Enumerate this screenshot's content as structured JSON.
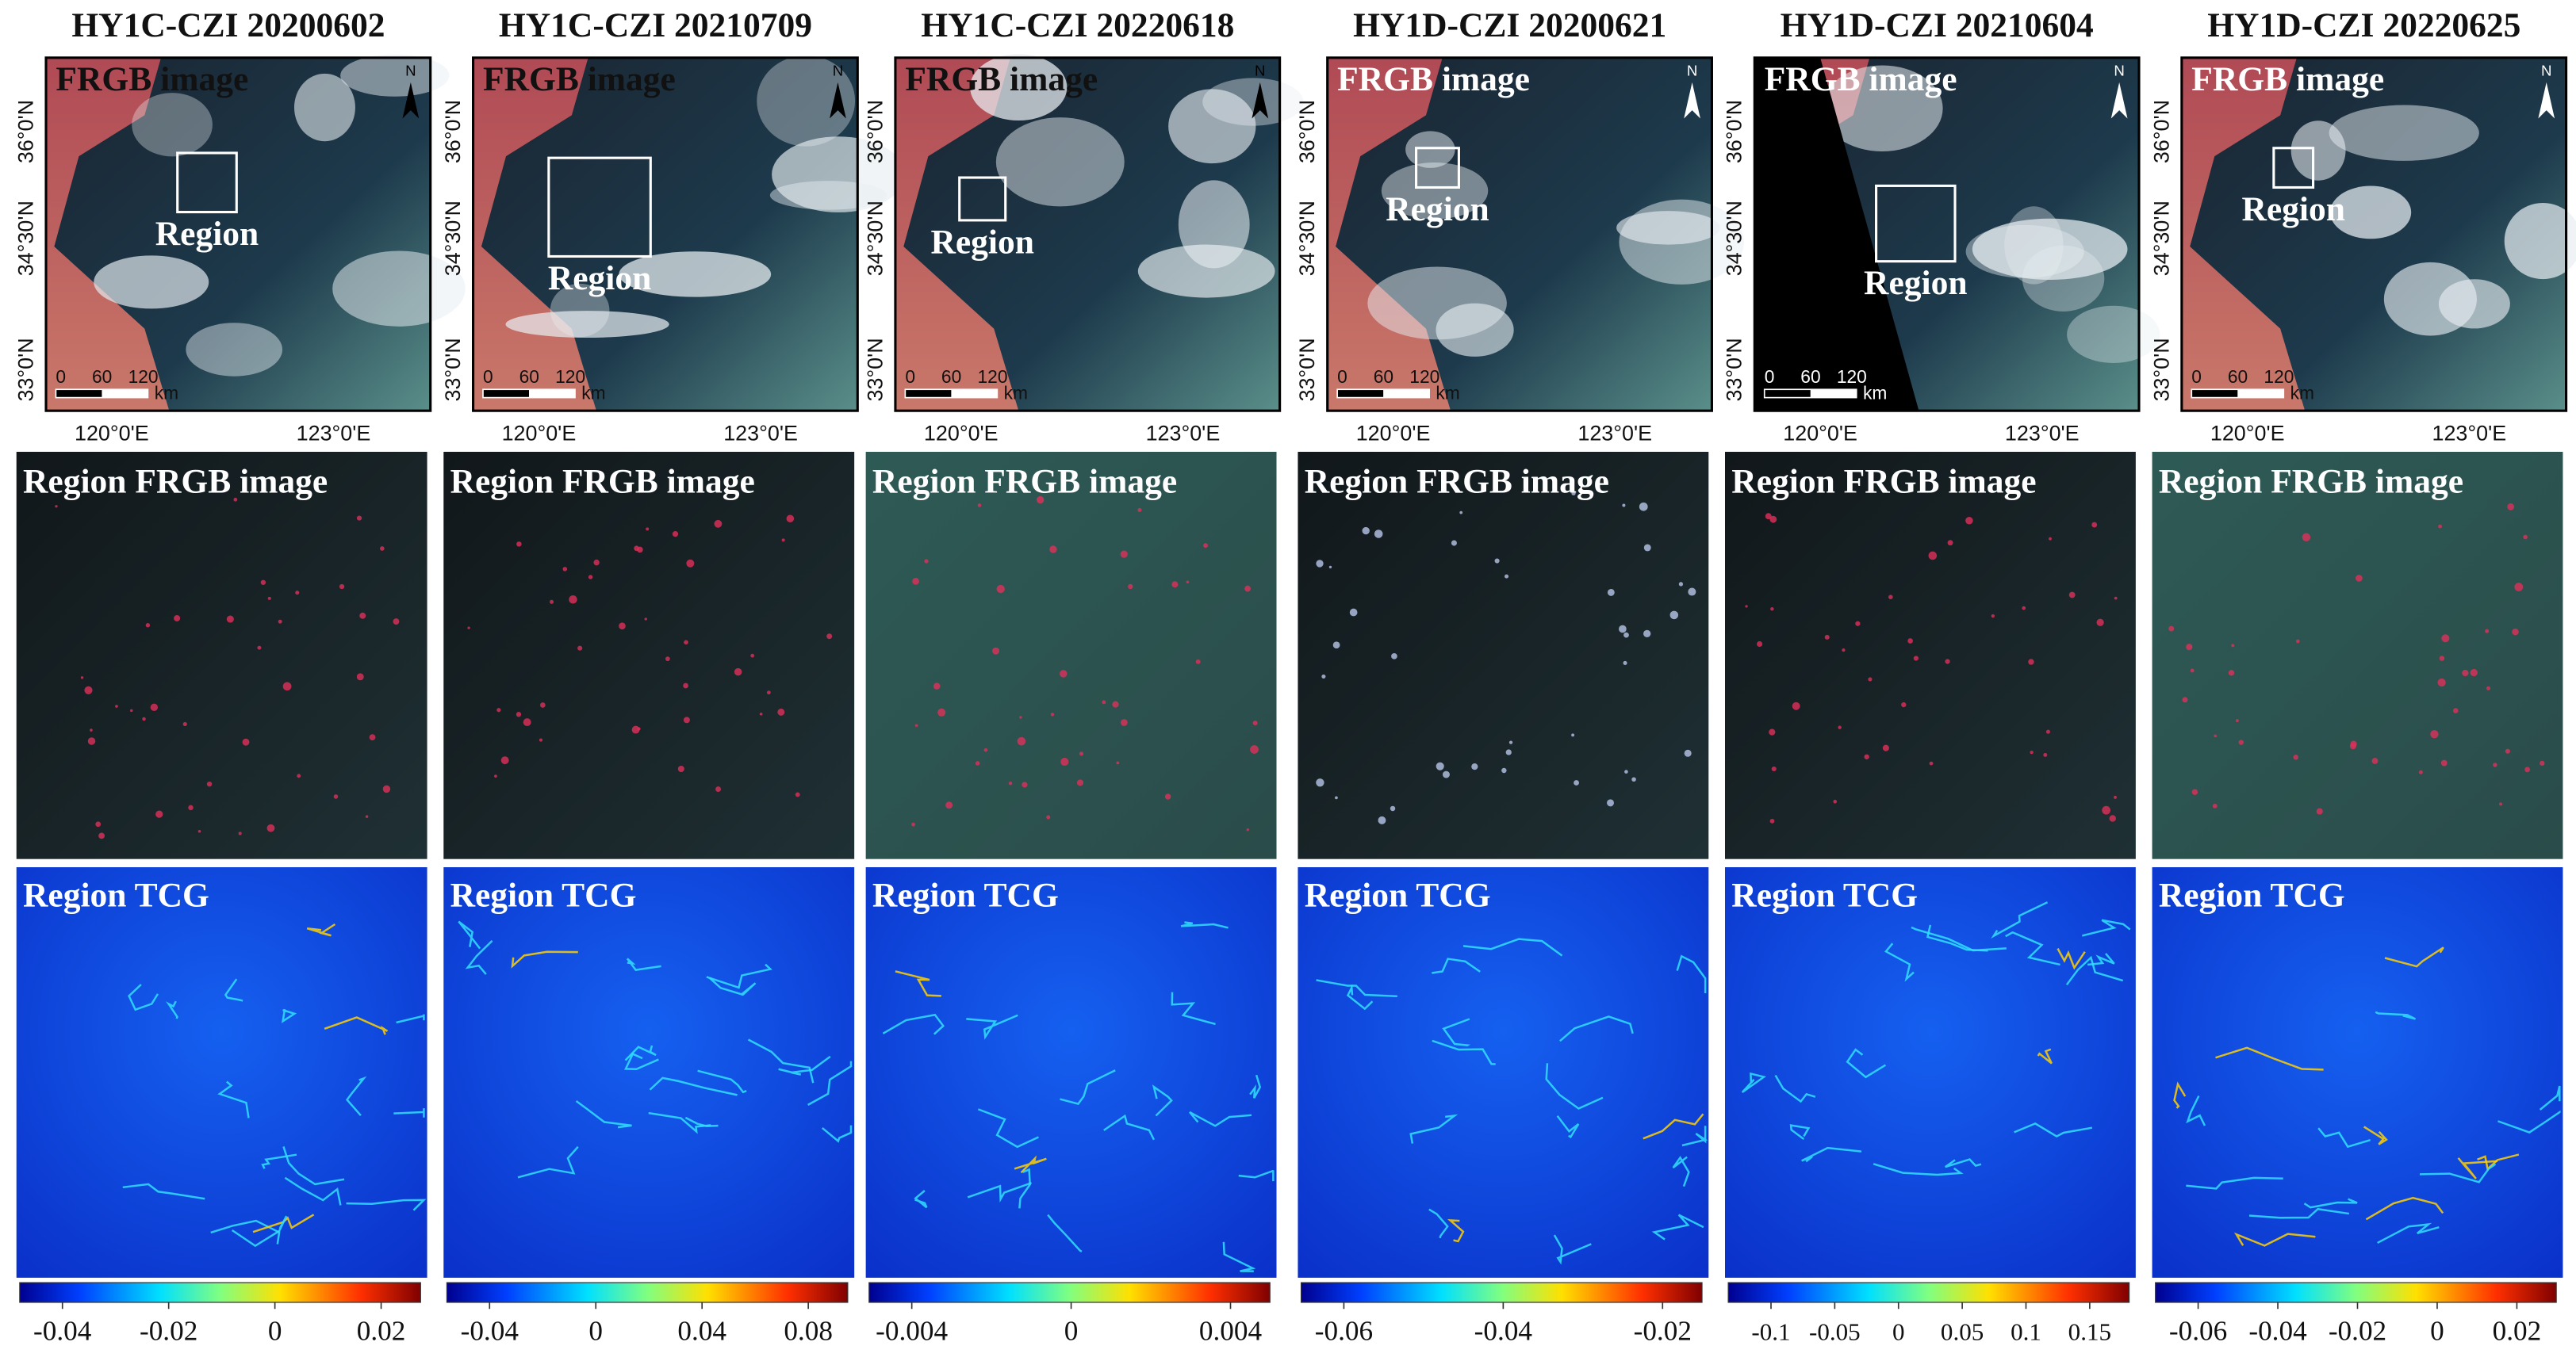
{
  "labels": {
    "frgb": "FRGB image",
    "region": "Region",
    "region_frgb": "Region FRGB image",
    "region_tcg": "Region TCG",
    "north": "N",
    "lat": [
      "36°0'N",
      "34°30'N",
      "33°0'N"
    ],
    "lon": [
      "120°0'E",
      "123°0'E"
    ],
    "scale": [
      "0",
      "60",
      "120"
    ],
    "scale_unit": "km"
  },
  "columns": [
    {
      "title": "HY1C-CZI 20200602",
      "colorbar_ticks": [
        "-0.04",
        "-0.02",
        "0",
        "0.02"
      ]
    },
    {
      "title": "HY1C-CZI 20210709",
      "colorbar_ticks": [
        "-0.04",
        "0",
        "0.04",
        "0.08"
      ]
    },
    {
      "title": "HY1C-CZI 20220618",
      "colorbar_ticks": [
        "-0.004",
        "0",
        "0.004"
      ]
    },
    {
      "title": "HY1D-CZI 20200621",
      "colorbar_ticks": [
        "-0.06",
        "-0.04",
        "-0.02"
      ]
    },
    {
      "title": "HY1D-CZI 20210604",
      "colorbar_ticks": [
        "-0.1",
        "-0.05",
        "0",
        "0.05",
        "0.1",
        "0.15"
      ]
    },
    {
      "title": "HY1D-CZI 20220625",
      "colorbar_ticks": [
        "-0.06",
        "-0.04",
        "-0.02",
        "0",
        "0.02"
      ]
    }
  ]
}
